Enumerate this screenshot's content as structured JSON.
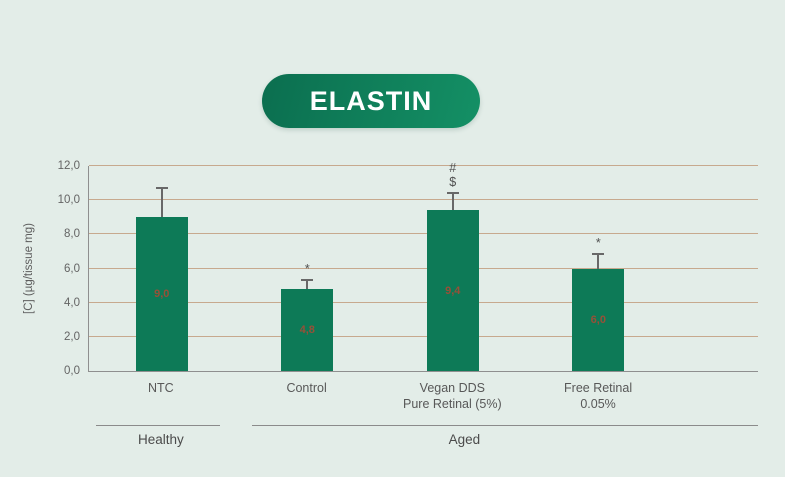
{
  "badge": {
    "label": "ELASTIN"
  },
  "colors": {
    "background": "#e3ede8",
    "bar": "#0d7a57",
    "badge_gradient_start": "#0b6e4f",
    "badge_gradient_end": "#149065",
    "badge_text": "#ffffff",
    "gridline": "#c7a98e",
    "axis": "#8f8f8f",
    "error_bar": "#686868",
    "value_label": "#975038"
  },
  "chart_data": {
    "type": "bar",
    "title": "ELASTIN",
    "xlabel": "",
    "ylabel": "[C] (µg/tissue mg)",
    "ylim": [
      0,
      12
    ],
    "grid": true,
    "legend": false,
    "yticks": [
      {
        "value": 0,
        "label": "0,0"
      },
      {
        "value": 2,
        "label": "2,0"
      },
      {
        "value": 4,
        "label": "4,0"
      },
      {
        "value": 6,
        "label": "6,0"
      },
      {
        "value": 8,
        "label": "8,0"
      },
      {
        "value": 10,
        "label": "10,0"
      },
      {
        "value": 12,
        "label": "12,0"
      }
    ],
    "bars": [
      {
        "category_lines": [
          "NTC"
        ],
        "value": 9.0,
        "value_label": "9,0",
        "error_upper": 1.8,
        "significance": []
      },
      {
        "category_lines": [
          "Control"
        ],
        "value": 4.8,
        "value_label": "4,8",
        "error_upper": 0.6,
        "significance": [
          "*"
        ]
      },
      {
        "category_lines": [
          "Vegan DDS",
          "Pure Retinal (5%)"
        ],
        "value": 9.4,
        "value_label": "9,4",
        "error_upper": 1.1,
        "significance": [
          "#",
          "$"
        ]
      },
      {
        "category_lines": [
          "Free Retinal",
          "0.05%"
        ],
        "value": 6.0,
        "value_label": "6,0",
        "error_upper": 0.9,
        "significance": [
          "*"
        ]
      }
    ],
    "groups": [
      {
        "label": "Healthy",
        "columns": [
          0
        ]
      },
      {
        "label": "Aged",
        "columns": [
          1,
          2,
          3
        ]
      }
    ]
  }
}
